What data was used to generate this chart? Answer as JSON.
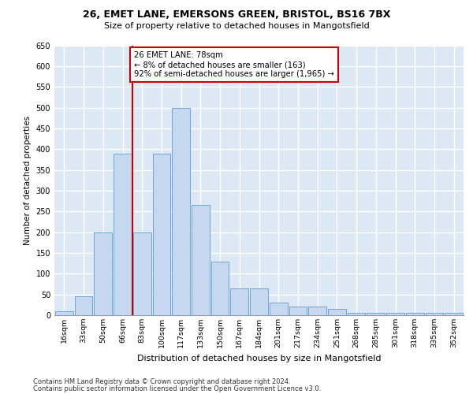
{
  "title1": "26, EMET LANE, EMERSONS GREEN, BRISTOL, BS16 7BX",
  "title2": "Size of property relative to detached houses in Mangotsfield",
  "xlabel": "Distribution of detached houses by size in Mangotsfield",
  "ylabel": "Number of detached properties",
  "categories": [
    "16sqm",
    "33sqm",
    "50sqm",
    "66sqm",
    "83sqm",
    "100sqm",
    "117sqm",
    "133sqm",
    "150sqm",
    "167sqm",
    "184sqm",
    "201sqm",
    "217sqm",
    "234sqm",
    "251sqm",
    "268sqm",
    "285sqm",
    "301sqm",
    "318sqm",
    "335sqm",
    "352sqm"
  ],
  "bar_values": [
    10,
    45,
    200,
    390,
    200,
    390,
    500,
    265,
    130,
    65,
    65,
    30,
    20,
    20,
    15,
    5,
    5,
    5,
    5,
    5,
    5
  ],
  "bar_color": "#c5d8f0",
  "bar_edgecolor": "#5b9bd5",
  "vline_x_index": 4,
  "vline_color": "#cc0000",
  "annotation_text": "26 EMET LANE: 78sqm\n← 8% of detached houses are smaller (163)\n92% of semi-detached houses are larger (1,965) →",
  "annotation_box_color": "#ffffff",
  "annotation_box_edgecolor": "#cc0000",
  "ylim": [
    0,
    650
  ],
  "yticks": [
    0,
    50,
    100,
    150,
    200,
    250,
    300,
    350,
    400,
    450,
    500,
    550,
    600,
    650
  ],
  "background_color": "#dde8f5",
  "grid_color": "#ffffff",
  "footer1": "Contains HM Land Registry data © Crown copyright and database right 2024.",
  "footer2": "Contains public sector information licensed under the Open Government Licence v3.0."
}
